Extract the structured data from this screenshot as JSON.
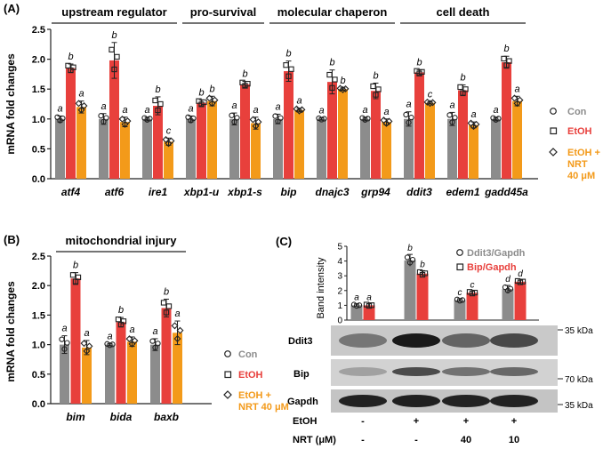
{
  "panel_labels": {
    "A": "(A)",
    "B": "(B)",
    "C": "(C)"
  },
  "colors": {
    "con": "#8c8c8c",
    "etoh": "#e8403c",
    "nrt": "#f39a1a"
  },
  "legend_A": {
    "con": "Con",
    "etoh": "EtOH",
    "nrt_line1": "EtOH +",
    "nrt_line2": "NRT",
    "nrt_line3": "40 μM"
  },
  "legend_B": {
    "con": "Con",
    "etoh": "EtOH",
    "nrt_line1": "EtOH +",
    "nrt_line2": "NRT 40 μM"
  },
  "legend_C": {
    "ddit3": "Ddit3/Gapdh",
    "bip": "Bip/Gapdh"
  },
  "blot": {
    "rows": [
      "Ddit3",
      "Bip",
      "Gapdh"
    ],
    "markers": [
      "35 kDa",
      "70 kDa",
      "35 kDa"
    ],
    "etoh_label": "EtOH",
    "nrt_label": "NRT (μM)",
    "etoh_values": [
      "-",
      "+",
      "+",
      "+"
    ],
    "nrt_values": [
      "-",
      "-",
      "40",
      "10"
    ]
  },
  "chart_data": [
    {
      "type": "bar",
      "panel": "A",
      "ylabel": "mRNA fold changes",
      "ylim": [
        0,
        2.5
      ],
      "yticks": [
        "0.0",
        "0.5",
        "1.0",
        "1.5",
        "2.0",
        "2.5"
      ],
      "groups": [
        {
          "label": "upstream regulator",
          "genes": [
            "atf4",
            "atf6",
            "ire1"
          ]
        },
        {
          "label": "pro-survival",
          "genes": [
            "xbp1-u",
            "xbp1-s"
          ]
        },
        {
          "label": "molecular chaperon",
          "genes": [
            "bip",
            "dnajc3",
            "grp94"
          ]
        },
        {
          "label": "cell death",
          "genes": [
            "ddit3",
            "edem1",
            "gadd45a"
          ]
        }
      ],
      "categories": [
        "atf4",
        "atf6",
        "ire1",
        "xbp1-u",
        "xbp1-s",
        "bip",
        "dnajc3",
        "grp94",
        "ddit3",
        "edem1",
        "gadd45a"
      ],
      "series": [
        {
          "name": "Con",
          "values": [
            1.0,
            1.0,
            1.0,
            1.0,
            1.0,
            1.0,
            1.0,
            1.0,
            1.0,
            1.0,
            1.0
          ],
          "errors": [
            0.05,
            0.09,
            0.03,
            0.05,
            0.1,
            0.08,
            0.02,
            0.03,
            0.12,
            0.11,
            0.03
          ],
          "letters": [
            "a",
            "a",
            "a",
            "a",
            "a",
            "a",
            "a",
            "a",
            "a",
            "a",
            "a"
          ]
        },
        {
          "name": "EtOH",
          "values": [
            1.85,
            1.98,
            1.22,
            1.27,
            1.58,
            1.8,
            1.62,
            1.47,
            1.78,
            1.48,
            1.95
          ],
          "errors": [
            0.07,
            0.3,
            0.15,
            0.05,
            0.05,
            0.17,
            0.2,
            0.13,
            0.04,
            0.09,
            0.1
          ],
          "letters": [
            "b",
            "b",
            "b",
            "b",
            "b",
            "b",
            "b",
            "b",
            "b",
            "b",
            "b"
          ]
        },
        {
          "name": "EtOH + NRT 40 μM",
          "values": [
            1.2,
            0.95,
            0.62,
            1.3,
            0.93,
            1.15,
            1.5,
            0.95,
            1.27,
            0.9,
            1.3
          ],
          "errors": [
            0.1,
            0.08,
            0.06,
            0.08,
            0.1,
            0.03,
            0.02,
            0.05,
            0.02,
            0.05,
            0.08
          ],
          "letters": [
            "a",
            "a",
            "c",
            "b",
            "a",
            "a",
            "b",
            "a",
            "c",
            "a",
            "a"
          ]
        }
      ]
    },
    {
      "type": "bar",
      "panel": "B",
      "ylabel": "mRNA fold changes",
      "ylim": [
        0,
        2.5
      ],
      "yticks": [
        "0.0",
        "0.5",
        "1.0",
        "1.5",
        "2.0",
        "2.5"
      ],
      "groups": [
        {
          "label": "mitochondrial injury",
          "genes": [
            "bim",
            "bida",
            "baxb"
          ]
        }
      ],
      "categories": [
        "bim",
        "bida",
        "baxb"
      ],
      "series": [
        {
          "name": "Con",
          "values": [
            1.0,
            1.0,
            1.0
          ],
          "errors": [
            0.15,
            0.02,
            0.1
          ],
          "letters": [
            "a",
            "a",
            "a"
          ]
        },
        {
          "name": "EtOH",
          "values": [
            2.12,
            1.38,
            1.62
          ],
          "errors": [
            0.1,
            0.08,
            0.15
          ],
          "letters": [
            "b",
            "b",
            "b"
          ]
        },
        {
          "name": "EtOH + NRT 40 μM",
          "values": [
            0.95,
            1.05,
            1.2
          ],
          "errors": [
            0.12,
            0.08,
            0.2
          ],
          "letters": [
            "a",
            "a",
            "a"
          ]
        }
      ]
    },
    {
      "type": "bar",
      "panel": "C",
      "ylabel": "Band intensity",
      "ylim": [
        0,
        5
      ],
      "yticks": [
        "0",
        "1",
        "2",
        "3",
        "4",
        "5"
      ],
      "categories": [
        "EtOH -, NRT -",
        "EtOH +, NRT -",
        "EtOH +, NRT 40",
        "EtOH +, NRT 10"
      ],
      "series": [
        {
          "name": "Ddit3/Gapdh",
          "values": [
            1.0,
            4.05,
            1.35,
            2.1
          ],
          "errors": [
            0.1,
            0.4,
            0.1,
            0.25
          ],
          "letters": [
            "a",
            "b",
            "c",
            "d"
          ]
        },
        {
          "name": "Bip/Gapdh",
          "values": [
            1.0,
            3.15,
            1.85,
            2.6
          ],
          "errors": [
            0.1,
            0.2,
            0.12,
            0.1
          ],
          "letters": [
            "a",
            "b",
            "c",
            "d"
          ]
        }
      ]
    }
  ]
}
